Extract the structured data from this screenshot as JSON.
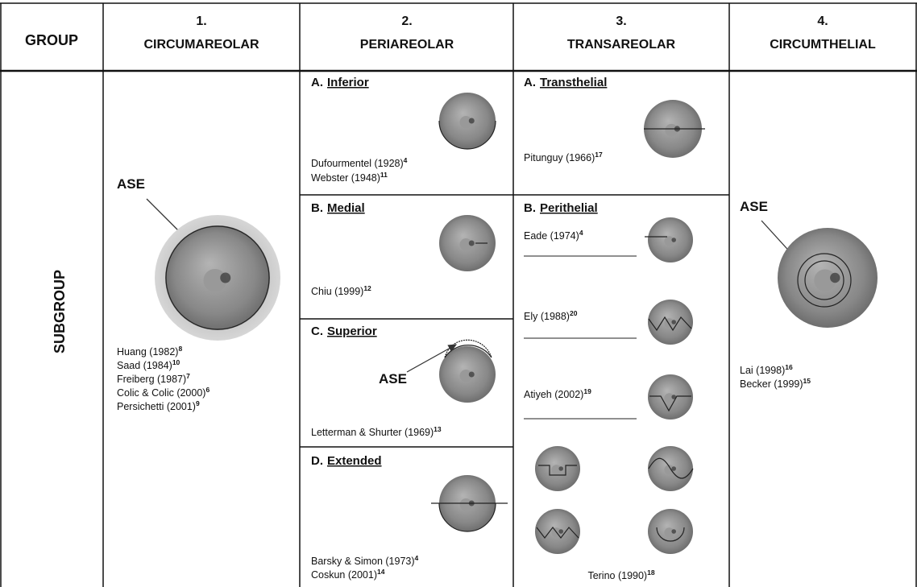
{
  "header": {
    "group_label": "GROUP",
    "columns": [
      {
        "number": "1.",
        "title": "CIRCUMAREOLAR"
      },
      {
        "number": "2.",
        "title": "PERIAREOLAR"
      },
      {
        "number": "3.",
        "title": "TRANSAREOLAR"
      },
      {
        "number": "4.",
        "title": "CIRCUMTHELIAL"
      }
    ]
  },
  "row_label": "SUBGROUP",
  "circumareolar": {
    "annotation": "ASE",
    "citations": [
      {
        "text": "Huang (1982)",
        "ref": "8"
      },
      {
        "text": "Saad (1984)",
        "ref": "10"
      },
      {
        "text": "Freiberg (1987)",
        "ref": "7"
      },
      {
        "text": "Colic & Colic (2000)",
        "ref": "6"
      },
      {
        "text": "Persichetti (2001)",
        "ref": "9"
      }
    ]
  },
  "periareolar": {
    "subgroups": [
      {
        "letter": "A.",
        "name": "Inferior",
        "citations": [
          {
            "text": "Dufourmentel (1928)",
            "ref": "4"
          },
          {
            "text": "Webster (1948)",
            "ref": "11"
          }
        ]
      },
      {
        "letter": "B.",
        "name": "Medial",
        "citations": [
          {
            "text": "Chiu (1999)",
            "ref": "12"
          }
        ]
      },
      {
        "letter": "C.",
        "name": "Superior",
        "annotation": "ASE",
        "citations": [
          {
            "text": "Letterman & Shurter (1969)",
            "ref": "13"
          }
        ]
      },
      {
        "letter": "D.",
        "name": "Extended",
        "citations": [
          {
            "text": "Barsky & Simon (1973)",
            "ref": "4"
          },
          {
            "text": "Coskun (2001)",
            "ref": "14"
          }
        ]
      }
    ]
  },
  "transareolar": {
    "subgroups": [
      {
        "letter": "A.",
        "name": "Transthelial",
        "citations": [
          {
            "text": "Pitunguy (1966)",
            "ref": "17"
          }
        ]
      },
      {
        "letter": "B.",
        "name": "Perithelial",
        "citations": [
          {
            "text": "Eade (1974)",
            "ref": "4"
          },
          {
            "text": "Ely (1988)",
            "ref": "20"
          },
          {
            "text": "Atiyeh (2002)",
            "ref": "19"
          },
          {
            "text": "Terino (1990)",
            "ref": "18"
          }
        ]
      }
    ]
  },
  "circumthelial": {
    "annotation": "ASE",
    "citations": [
      {
        "text": "Lai (1998)",
        "ref": "16"
      },
      {
        "text": "Becker (1999)",
        "ref": "15"
      }
    ]
  }
}
